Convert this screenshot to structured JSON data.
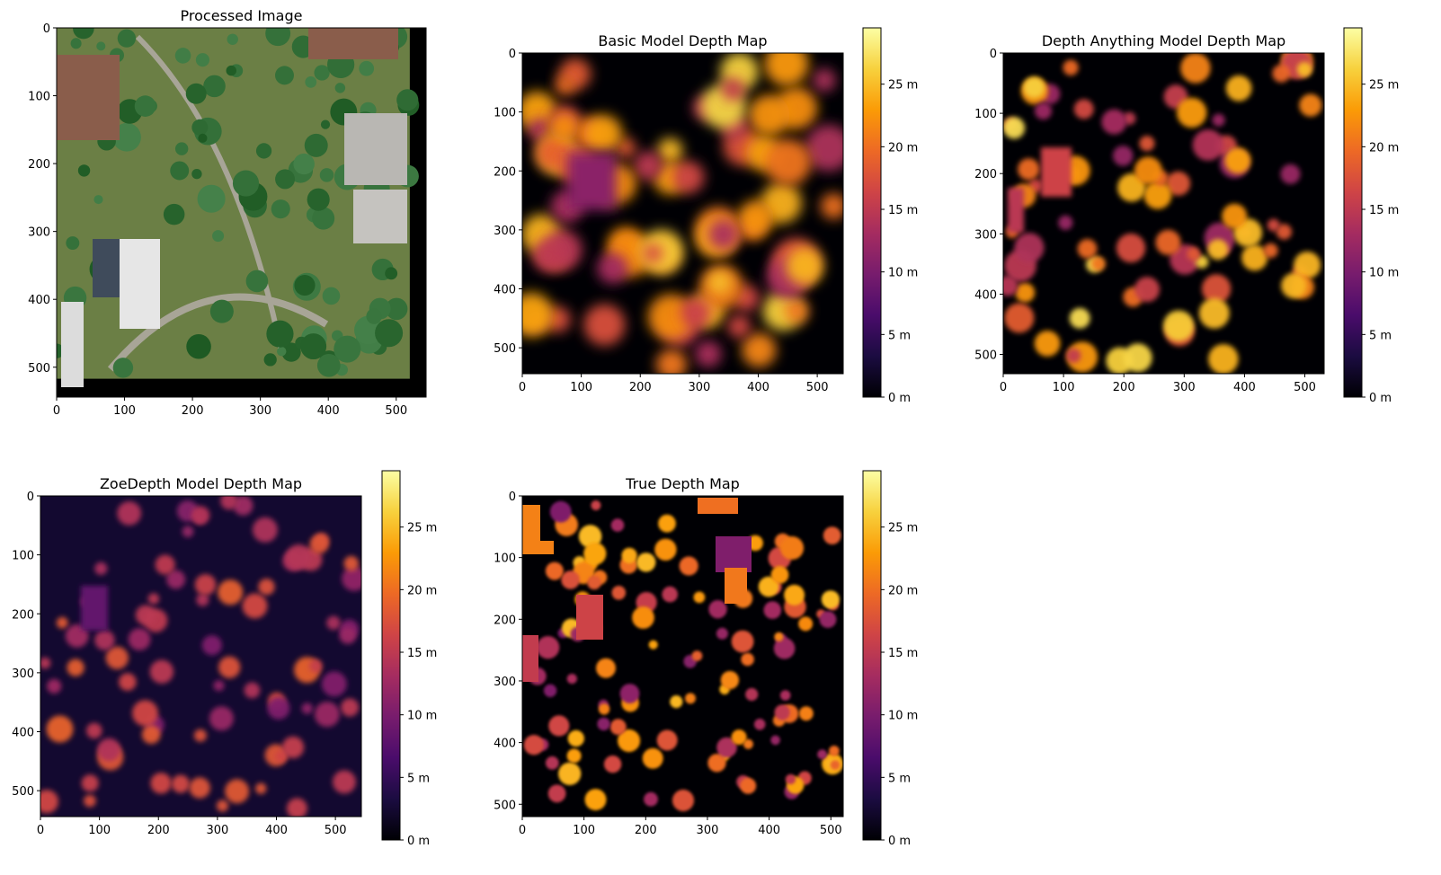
{
  "figure": {
    "colormap": "inferno",
    "colormap_stops": [
      "#000004",
      "#1b0c41",
      "#4a0c6b",
      "#781c6d",
      "#a52c60",
      "#cf4446",
      "#ed6925",
      "#fb9b06",
      "#f7d13d",
      "#fcffa4"
    ]
  },
  "chart_data": [
    {
      "id": "processed",
      "type": "image",
      "title": "Processed Image",
      "xlim": [
        0,
        544
      ],
      "ylim": [
        544,
        0
      ],
      "xticks": [
        0,
        100,
        200,
        300,
        400,
        500
      ],
      "yticks": [
        0,
        100,
        200,
        300,
        400,
        500
      ],
      "xtick_labels": [
        "0",
        "100",
        "200",
        "300",
        "400",
        "500"
      ],
      "ytick_labels": [
        "0",
        "100",
        "200",
        "300",
        "400",
        "500"
      ],
      "content": "aerial photograph",
      "colorbar": null
    },
    {
      "id": "basic",
      "type": "heatmap",
      "title": "Basic Model Depth Map",
      "xlim": [
        0,
        544
      ],
      "ylim": [
        544,
        0
      ],
      "xticks": [
        0,
        100,
        200,
        300,
        400,
        500
      ],
      "yticks": [
        0,
        100,
        200,
        300,
        400,
        500
      ],
      "xtick_labels": [
        "0",
        "100",
        "200",
        "300",
        "400",
        "500"
      ],
      "ytick_labels": [
        "0",
        "100",
        "200",
        "300",
        "400",
        "500"
      ],
      "colorbar": {
        "range": [
          0,
          29.5
        ],
        "ticks": [
          0,
          5,
          10,
          15,
          20,
          25
        ],
        "tick_labels": [
          "0 m",
          "5 m",
          "10 m",
          "15 m",
          "20 m",
          "25 m"
        ]
      }
    },
    {
      "id": "depth-anything",
      "type": "heatmap",
      "title": "Depth Anything Model Depth Map",
      "xlim": [
        0,
        532
      ],
      "ylim": [
        532,
        0
      ],
      "xticks": [
        0,
        100,
        200,
        300,
        400,
        500
      ],
      "yticks": [
        0,
        100,
        200,
        300,
        400,
        500
      ],
      "xtick_labels": [
        "0",
        "100",
        "200",
        "300",
        "400",
        "500"
      ],
      "ytick_labels": [
        "0",
        "100",
        "200",
        "300",
        "400",
        "500"
      ],
      "colorbar": {
        "range": [
          0,
          29.5
        ],
        "ticks": [
          0,
          5,
          10,
          15,
          20,
          25
        ],
        "tick_labels": [
          "0 m",
          "5 m",
          "10 m",
          "15 m",
          "20 m",
          "25 m"
        ]
      }
    },
    {
      "id": "zoedepth",
      "type": "heatmap",
      "title": "ZoeDepth Model Depth Map",
      "xlim": [
        0,
        544
      ],
      "ylim": [
        544,
        0
      ],
      "xticks": [
        0,
        100,
        200,
        300,
        400,
        500
      ],
      "yticks": [
        0,
        100,
        200,
        300,
        400,
        500
      ],
      "xtick_labels": [
        "0",
        "100",
        "200",
        "300",
        "400",
        "500"
      ],
      "ytick_labels": [
        "0",
        "100",
        "200",
        "300",
        "400",
        "500"
      ],
      "colorbar": {
        "range": [
          0,
          29.5
        ],
        "ticks": [
          0,
          5,
          10,
          15,
          20,
          25
        ],
        "tick_labels": [
          "0 m",
          "5 m",
          "10 m",
          "15 m",
          "20 m",
          "25 m"
        ]
      }
    },
    {
      "id": "true",
      "type": "heatmap",
      "title": "True Depth Map",
      "xlim": [
        0,
        520
      ],
      "ylim": [
        520,
        0
      ],
      "xticks": [
        0,
        100,
        200,
        300,
        400,
        500
      ],
      "yticks": [
        0,
        100,
        200,
        300,
        400,
        500
      ],
      "xtick_labels": [
        "0",
        "100",
        "200",
        "300",
        "400",
        "500"
      ],
      "ytick_labels": [
        "0",
        "100",
        "200",
        "300",
        "400",
        "500"
      ],
      "colorbar": {
        "range": [
          0,
          29.5
        ],
        "ticks": [
          0,
          5,
          10,
          15,
          20,
          25
        ],
        "tick_labels": [
          "0 m",
          "5 m",
          "10 m",
          "15 m",
          "20 m",
          "25 m"
        ]
      }
    }
  ]
}
